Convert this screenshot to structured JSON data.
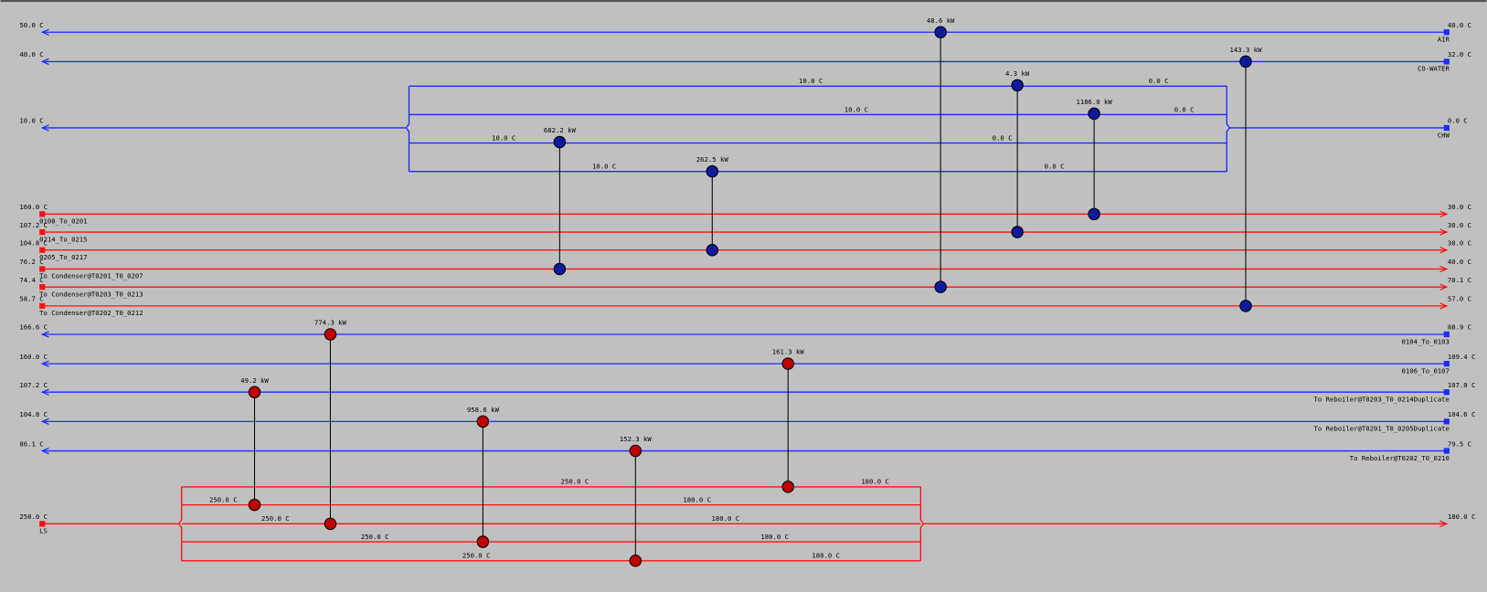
{
  "streams": [
    {
      "name": "AIR",
      "left": "50.0 C",
      "right": "40.0 C",
      "color": "#1a2cff"
    },
    {
      "name": "CO-WATER",
      "left": "40.0 C",
      "right": "32.0 C",
      "color": "#1a2cff"
    },
    {
      "name": "CHW",
      "left": "10.0 C",
      "right": "0.0 C",
      "color": "#1a2cff",
      "branches": [
        [
          "10.0 C",
          "0.0 C"
        ],
        [
          "10.0 C",
          "0.0 C"
        ],
        [
          "10.0 C",
          "0.0 C"
        ],
        [
          "10.0 C",
          "0.0 C"
        ]
      ]
    },
    {
      "name": "0108_To_0201",
      "left": "160.0 C",
      "right": "30.0 C",
      "color": "#ff1010"
    },
    {
      "name": "0214_To_0215",
      "left": "107.2 C",
      "right": "30.0 C",
      "color": "#ff1010"
    },
    {
      "name": "0205_To_0217",
      "left": "104.8 C",
      "right": "30.0 C",
      "color": "#ff1010"
    },
    {
      "name": "To Condenser@T0201_T0_0207",
      "left": "76.2 C",
      "right": "40.0 C",
      "color": "#ff1010"
    },
    {
      "name": "To Condenser@T0203_T0_0213",
      "left": "74.4 C",
      "right": "70.1 C",
      "color": "#ff1010"
    },
    {
      "name": "To Condenser@T0202_T0_0212",
      "left": "58.7 C",
      "right": "57.0 C",
      "color": "#ff1010"
    },
    {
      "name": "0104_To_0103",
      "left": "166.6 C",
      "right": "88.9 C",
      "color": "#1a2cff"
    },
    {
      "name": "0106_To_0107",
      "left": "160.0 C",
      "right": "109.4 C",
      "color": "#1a2cff"
    },
    {
      "name": "To Reboiler@T0203_T0_0214Duplicate",
      "left": "107.2 C",
      "right": "107.0 C",
      "color": "#1a2cff"
    },
    {
      "name": "To Reboiler@T0201_T0_0205Duplicate",
      "left": "104.8 C",
      "right": "104.6 C",
      "color": "#1a2cff"
    },
    {
      "name": "To Reboiler@T0202_T0_0210",
      "left": "86.1 C",
      "right": "79.5 C",
      "color": "#1a2cff"
    },
    {
      "name": "LS",
      "left": "250.0 C",
      "right": "180.0 C",
      "color": "#ff1010",
      "branches": [
        [
          "250.0 C",
          "180.0 C"
        ],
        [
          "250.0 C",
          "180.0 C"
        ],
        [
          "250.0 C",
          "180.0 C"
        ],
        [
          "250.0 C",
          "180.0 C"
        ],
        [
          "250.0 C",
          "180.0 C"
        ]
      ]
    }
  ],
  "exchangers": [
    {
      "duty": "48.6 kW",
      "color": "#0d1a9e"
    },
    {
      "duty": "143.3 kW",
      "color": "#0d1a9e"
    },
    {
      "duty": "4.3 kW",
      "color": "#0d1a9e"
    },
    {
      "duty": "1186.0 kW",
      "color": "#0d1a9e"
    },
    {
      "duty": "682.2 kW",
      "color": "#0d1a9e"
    },
    {
      "duty": "262.5 kW",
      "color": "#0d1a9e"
    },
    {
      "duty": "774.3 kW",
      "color": "#c00000"
    },
    {
      "duty": "49.2 kW",
      "color": "#c00000"
    },
    {
      "duty": "958.6 kW",
      "color": "#c00000"
    },
    {
      "duty": "152.3 kW",
      "color": "#c00000"
    },
    {
      "duty": "161.3 kW",
      "color": "#c00000"
    }
  ]
}
